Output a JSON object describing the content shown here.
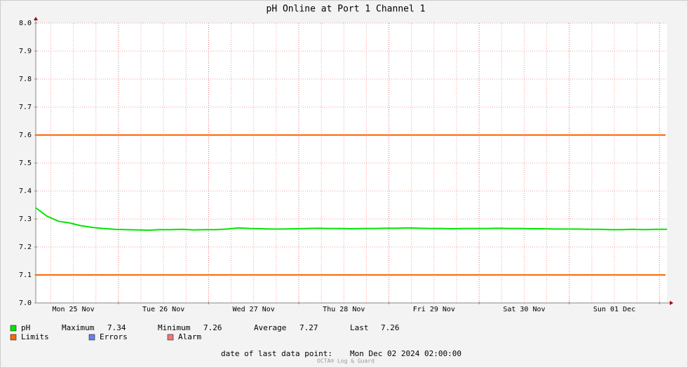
{
  "chart_data": {
    "type": "line",
    "title": "pH Online at Port 1 Channel 1",
    "x": [
      0,
      3,
      6,
      9,
      12,
      15,
      18,
      21,
      24,
      27,
      30,
      33,
      36,
      39,
      42,
      45,
      48,
      51,
      54,
      57,
      60,
      63,
      66,
      69,
      72,
      75,
      78,
      81,
      84,
      87,
      90,
      93,
      96,
      99,
      102,
      105,
      108,
      111,
      114,
      117,
      120,
      123,
      126,
      129,
      132,
      135,
      138,
      141,
      144,
      147,
      150,
      153,
      156,
      159,
      162,
      165,
      168
    ],
    "series": [
      {
        "name": "pH",
        "color": "#00e600",
        "values": [
          7.34,
          7.31,
          7.292,
          7.286,
          7.276,
          7.27,
          7.266,
          7.263,
          7.262,
          7.261,
          7.26,
          7.262,
          7.262,
          7.263,
          7.261,
          7.262,
          7.262,
          7.264,
          7.268,
          7.266,
          7.265,
          7.264,
          7.264,
          7.265,
          7.266,
          7.267,
          7.266,
          7.266,
          7.265,
          7.266,
          7.266,
          7.267,
          7.267,
          7.268,
          7.267,
          7.266,
          7.266,
          7.265,
          7.266,
          7.266,
          7.266,
          7.267,
          7.266,
          7.266,
          7.265,
          7.265,
          7.264,
          7.264,
          7.264,
          7.263,
          7.263,
          7.262,
          7.262,
          7.263,
          7.262,
          7.263,
          7.263
        ]
      }
    ],
    "limits": {
      "name": "Limits",
      "color": "#ff6600",
      "values": [
        7.1,
        7.6
      ]
    },
    "legend_extra": [
      {
        "name": "Errors",
        "color": "#6b7fef"
      },
      {
        "name": "Alarm",
        "color": "#f07878"
      }
    ],
    "stats": [
      {
        "label": "Maximum",
        "value": 7.34
      },
      {
        "label": "Minimum",
        "value": 7.26
      },
      {
        "label": "Average",
        "value": 7.27
      },
      {
        "label": "Last",
        "value": 7.26
      }
    ],
    "footer_label": "date of last data point:",
    "footer_value": "Mon Dec 02 2024 02:00:00",
    "watermark": "OCTA® Log & Guard",
    "xlim": [
      0,
      168
    ],
    "xticks": [
      {
        "value": 10,
        "label": "Mon 25 Nov"
      },
      {
        "value": 34,
        "label": "Tue 26 Nov"
      },
      {
        "value": 58,
        "label": "Wed 27 Nov"
      },
      {
        "value": 82,
        "label": "Thu 28 Nov"
      },
      {
        "value": 106,
        "label": "Fri 29 Nov"
      },
      {
        "value": 130,
        "label": "Sat 30 Nov"
      },
      {
        "value": 154,
        "label": "Sun 01 Dec"
      }
    ],
    "x_major_grid": [
      22,
      46,
      70,
      94,
      118,
      142,
      166
    ],
    "x_minor_grid": [
      4,
      10,
      16,
      28,
      34,
      40,
      52,
      58,
      64,
      76,
      82,
      88,
      100,
      106,
      112,
      124,
      130,
      136,
      148,
      154,
      160
    ],
    "ylim": [
      7.0,
      8.0
    ],
    "yticks": [
      {
        "value": 7.0,
        "label": "7.0"
      },
      {
        "value": 7.1,
        "label": "7.1"
      },
      {
        "value": 7.2,
        "label": "7.2"
      },
      {
        "value": 7.3,
        "label": "7.3"
      },
      {
        "value": 7.4,
        "label": "7.4"
      },
      {
        "value": 7.5,
        "label": "7.5"
      },
      {
        "value": 7.6,
        "label": "7.6"
      },
      {
        "value": 7.7,
        "label": "7.7"
      },
      {
        "value": 7.8,
        "label": "7.8"
      },
      {
        "value": 7.9,
        "label": "7.9"
      },
      {
        "value": 8.0,
        "label": "8.0"
      }
    ],
    "grid": true
  }
}
